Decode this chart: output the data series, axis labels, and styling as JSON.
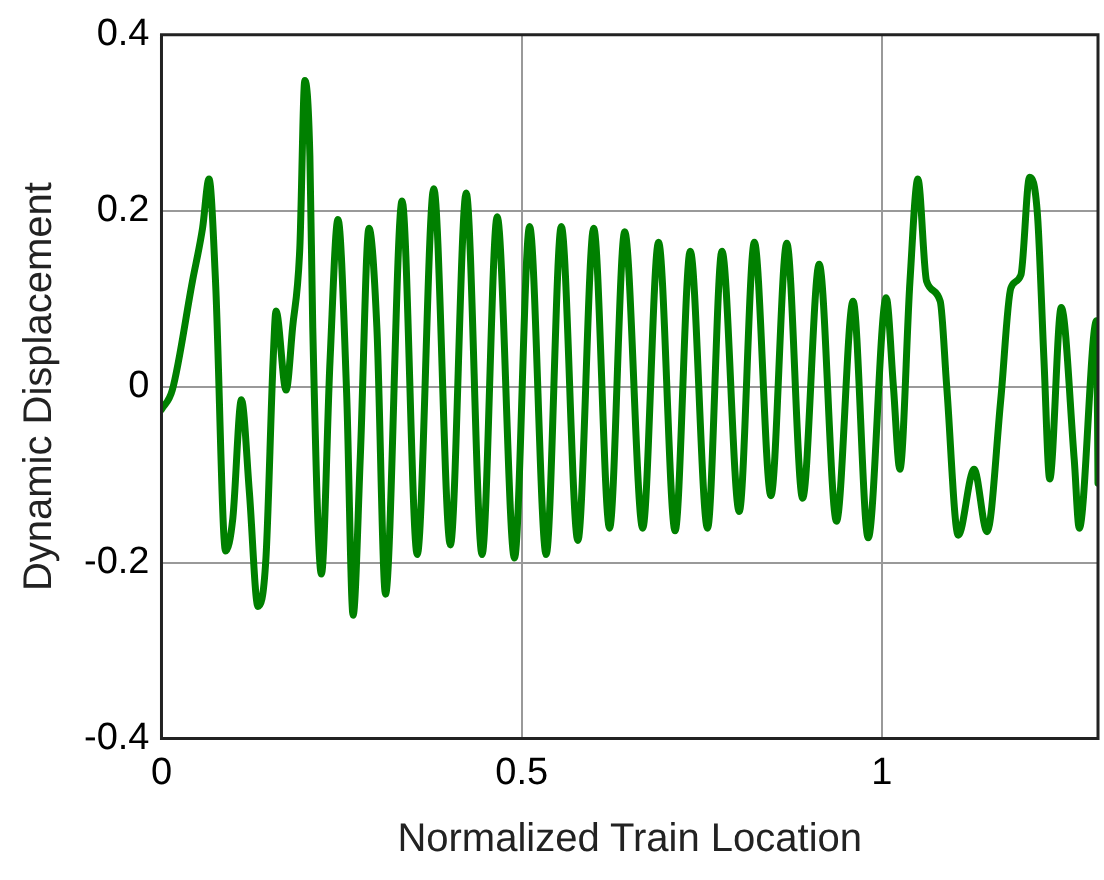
{
  "chart_data": {
    "type": "line",
    "xlabel": "Normalized Train Location",
    "ylabel": "Dynamic Displacement",
    "xlim": [
      0,
      1.3
    ],
    "xticks": [
      0,
      0.5,
      1
    ],
    "ylim": [
      -0.4,
      0.4
    ],
    "yticks": [
      0.4,
      0.2,
      0,
      -0.2,
      -0.4
    ],
    "grid": true,
    "legend": false,
    "marker": "none",
    "line_style": "solid",
    "series": [
      {
        "color": "#008000",
        "x": [
          0,
          0.015,
          0.043,
          0.057,
          0.066,
          0.075,
          0.089,
          0.099,
          0.111,
          0.122,
          0.134,
          0.145,
          0.155,
          0.159,
          0.173,
          0.182,
          0.192,
          0.199,
          0.206,
          0.21,
          0.222,
          0.234,
          0.245,
          0.257,
          0.266,
          0.276,
          0.288,
          0.299,
          0.311,
          0.334,
          0.355,
          0.378,
          0.401,
          0.423,
          0.445,
          0.466,
          0.49,
          0.511,
          0.534,
          0.555,
          0.578,
          0.6,
          0.622,
          0.643,
          0.668,
          0.69,
          0.713,
          0.734,
          0.758,
          0.778,
          0.802,
          0.823,
          0.846,
          0.868,
          0.89,
          0.913,
          0.937,
          0.96,
          0.981,
          1.006,
          1.016,
          1.025,
          1.039,
          1.05,
          1.062,
          1.081,
          1.09,
          1.106,
          1.128,
          1.146,
          1.165,
          1.179,
          1.193,
          1.205,
          1.216,
          1.225,
          1.233,
          1.249,
          1.267,
          1.274,
          1.298,
          1.3
        ],
        "values": [
          -0.026,
          -0.004,
          0.12,
          0.18,
          0.236,
          0.12,
          -0.187,
          -0.15,
          -0.015,
          -0.12,
          -0.25,
          -0.195,
          0.03,
          0.086,
          -0.004,
          0.067,
          0.157,
          0.348,
          0.262,
          0.067,
          -0.213,
          0.03,
          0.19,
          -0.007,
          -0.26,
          -0.08,
          0.18,
          0.067,
          -0.236,
          0.211,
          -0.191,
          0.225,
          -0.18,
          0.22,
          -0.191,
          0.193,
          -0.195,
          0.182,
          -0.191,
          0.182,
          -0.175,
          0.18,
          -0.161,
          0.176,
          -0.161,
          0.164,
          -0.164,
          0.154,
          -0.161,
          0.154,
          -0.142,
          0.164,
          -0.124,
          0.163,
          -0.127,
          0.139,
          -0.153,
          0.097,
          -0.172,
          0.101,
          0,
          -0.094,
          0.12,
          0.236,
          0.12,
          0.097,
          0,
          -0.169,
          -0.094,
          -0.165,
          -0.015,
          0.112,
          0.127,
          0.238,
          0.195,
          0.03,
          -0.105,
          0.09,
          -0.083,
          -0.161,
          0.075,
          -0.11
        ]
      }
    ]
  }
}
